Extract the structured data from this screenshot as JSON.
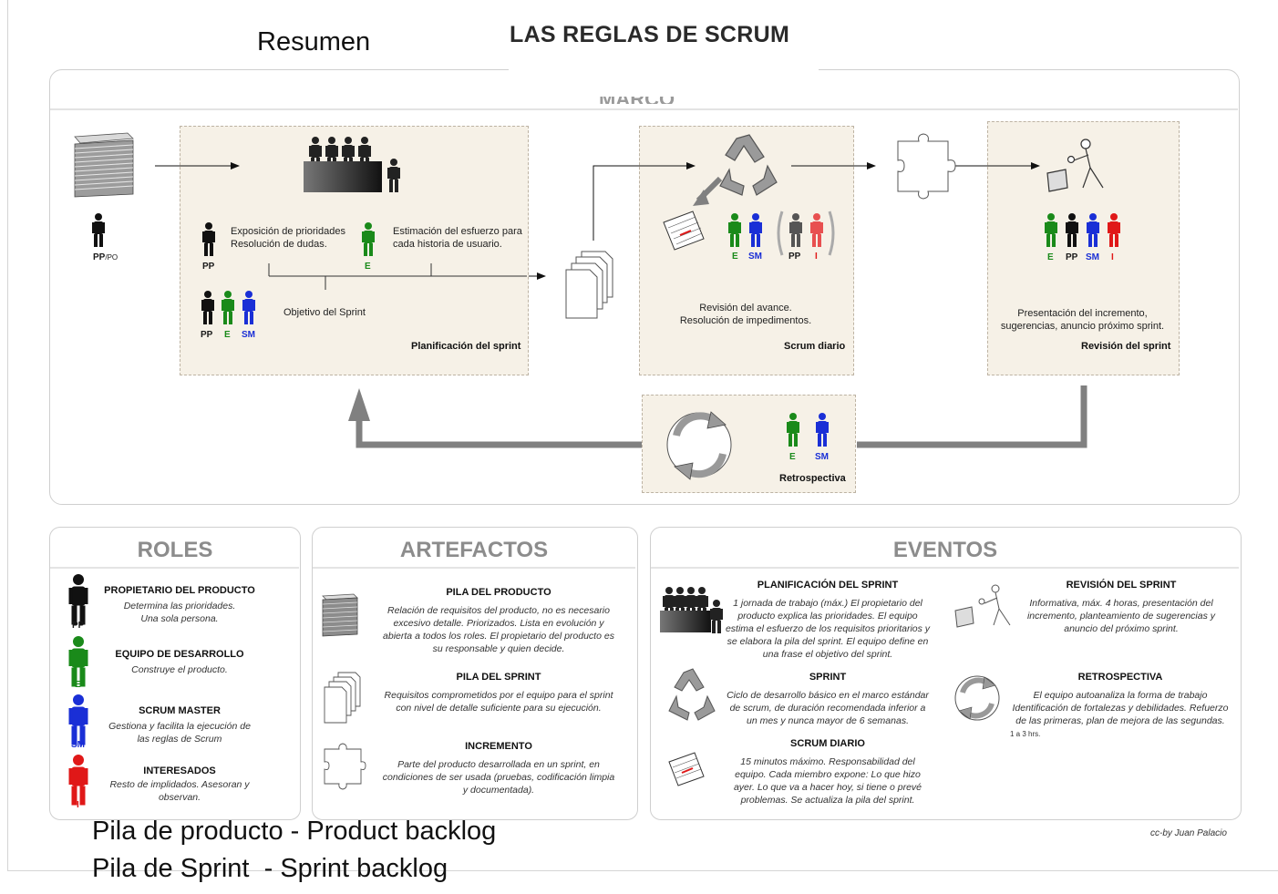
{
  "header": {
    "resumen": "Resumen",
    "title": "LAS REGLAS DE SCRUM",
    "marco_title": "MARCO"
  },
  "process": {
    "backlog_role": "PP",
    "backlog_role_sub": "/PO",
    "planning": {
      "text_left_1": "Exposición de prioridades",
      "text_left_2": "Resolución de dudas.",
      "text_right_1": "Estimación del esfuerzo para",
      "text_right_2": "cada historia de usuario.",
      "role_pp": "PP",
      "role_e": "E",
      "objective": "Objetivo del Sprint",
      "roles_bottom": [
        "PP",
        "E",
        "SM"
      ],
      "label": "Planificación del sprint"
    },
    "daily": {
      "roles": [
        "E",
        "SM",
        "PP",
        "I"
      ],
      "text_1": "Revisión del avance.",
      "text_2": "Resolución de impedimentos.",
      "label": "Scrum diario"
    },
    "review": {
      "roles": [
        "E",
        "PP",
        "SM",
        "I"
      ],
      "text_1": "Presentación del incremento,",
      "text_2": "sugerencias, anuncio próximo sprint.",
      "label": "Revisión del sprint"
    },
    "retro": {
      "roles": [
        "E",
        "SM"
      ],
      "label": "Retrospectiva"
    }
  },
  "roles_section": {
    "title": "ROLES",
    "items": [
      {
        "title": "PROPIETARIO DEL PRODUCTO",
        "desc_1": "Determina las prioridades.",
        "desc_2": "Una sola persona.",
        "tag": "PP"
      },
      {
        "title": "EQUIPO DE DESARROLLO",
        "desc_1": "Construye el producto.",
        "desc_2": "",
        "tag": "E"
      },
      {
        "title": "SCRUM MASTER",
        "desc_1": "Gestiona y facilita la ejecución de",
        "desc_2": "las reglas de Scrum",
        "tag": "SM"
      },
      {
        "title": "INTERESADOS",
        "desc_1": "Resto de implidados. Asesoran y",
        "desc_2": "observan.",
        "tag": "I"
      }
    ]
  },
  "artifacts_section": {
    "title": "ARTEFACTOS",
    "items": [
      {
        "title": "PILA DEL PRODUCTO",
        "lines": [
          "Relación de requisitos del producto, no es necesario",
          "excesivo detalle. Priorizados. Lista en evolución y",
          "abierta a todos los roles.  El propietario del producto es",
          "su responsable y quien decide."
        ]
      },
      {
        "title": "PILA DEL SPRINT",
        "lines": [
          "Requisitos comprometidos por el equipo para el sprint",
          "con nivel de detalle suficiente para su ejecución."
        ]
      },
      {
        "title": "INCREMENTO",
        "lines": [
          "Parte del producto desarrollada en un sprint, en",
          "condiciones de ser usada (pruebas, codificación limpia",
          "y documentada)."
        ]
      }
    ]
  },
  "events_section": {
    "title": "EVENTOS",
    "planning": {
      "title": "PLANIFICACIÓN DEL SPRINT",
      "lines": [
        "1 jornada de trabajo (máx.)  El propietario del",
        "producto explica las prioridades. El equipo",
        "estima el esfuerzo de los requisitos prioritarios y",
        "se elabora la pila del sprint. El equipo define en",
        "una frase el objetivo del sprint."
      ]
    },
    "sprint": {
      "title": "SPRINT",
      "lines": [
        "Ciclo de desarrollo básico en el marco estándar",
        "de scrum, de duración recomendada inferior a",
        "un mes y nunca mayor de 6 semanas."
      ]
    },
    "daily": {
      "title": "SCRUM DIARIO",
      "lines": [
        "15 minutos máximo. Responsabilidad del",
        "equipo. Cada miembro expone: Lo que hizo",
        "ayer. Lo que va a hacer hoy, si tiene o prevé",
        "problemas. Se actualiza la pila del sprint."
      ]
    },
    "review": {
      "title": "REVISIÓN DEL SPRINT",
      "lines": [
        "Informativa, máx. 4 horas, presentación del",
        "incremento, planteamiento de sugerencias y",
        "anuncio del próximo sprint."
      ]
    },
    "retro": {
      "title": "RETROSPECTIVA",
      "lines": [
        "El equipo autoanaliza  la forma de trabajo",
        "Identificación de fortalezas y debilidades. Refuerzo",
        "de las primeras, plan de mejora de las segundas."
      ],
      "note": "1 a 3 hrs."
    }
  },
  "footer": {
    "line_1": "Pila de producto - Product backlog",
    "line_2": "Pila de Sprint  - Sprint backlog",
    "credit": "cc-by Juan Palacio"
  },
  "colors": {
    "pp": "#111111",
    "e": "#1a8a1a",
    "sm": "#1a2fd6",
    "i": "#e01818",
    "box_bg": "#f6f1e7",
    "arrow_gray": "#808080"
  }
}
